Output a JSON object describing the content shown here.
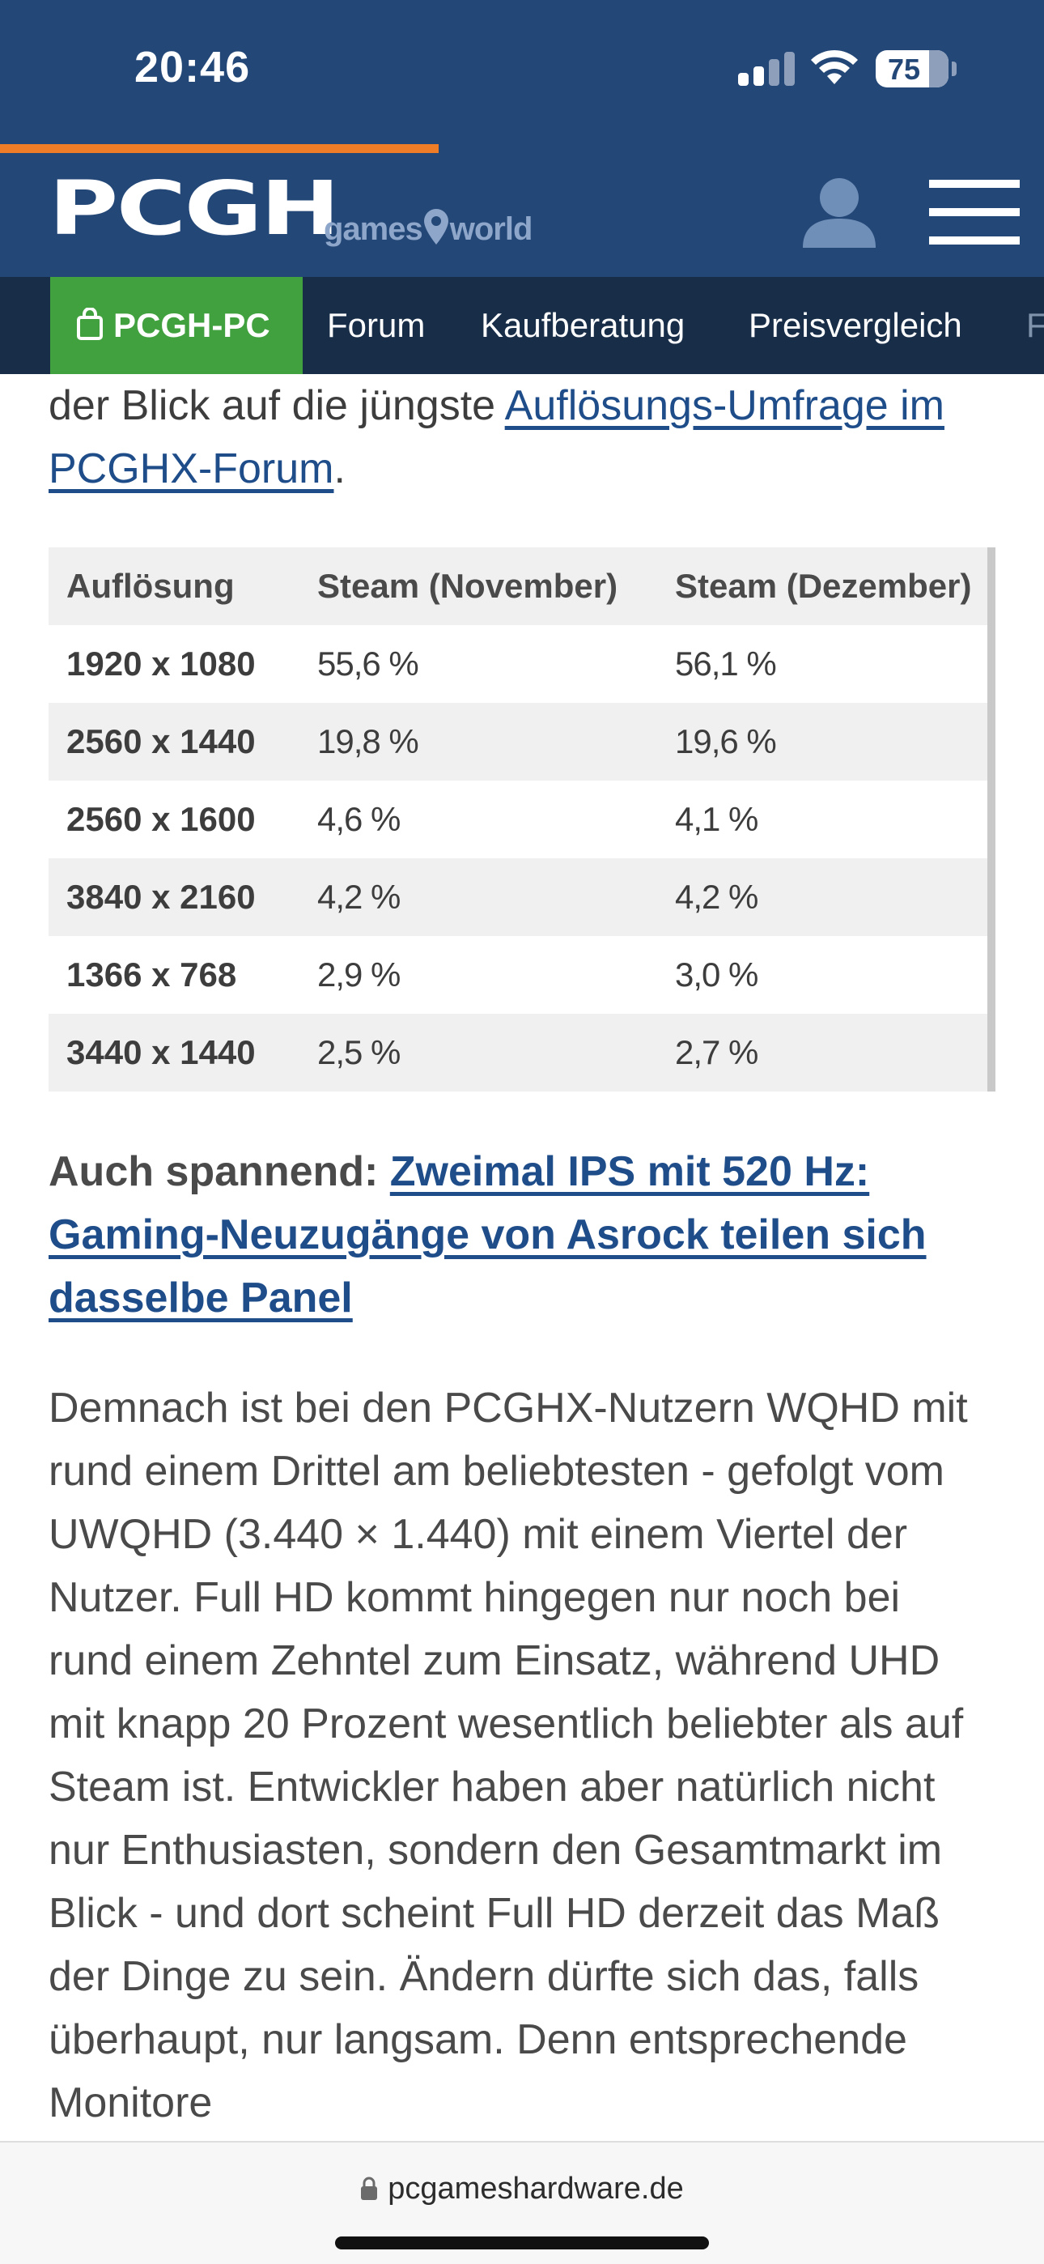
{
  "status": {
    "time": "20:46",
    "battery": "75"
  },
  "header": {
    "logo": "PCGH",
    "sublogo_left": "games",
    "sublogo_right": "world"
  },
  "nav": {
    "items": [
      "PCGH-PC",
      "Forum",
      "Kaufberatung",
      "Preisvergleich",
      "F"
    ]
  },
  "article": {
    "intro_text": "der Blick auf die jüngste ",
    "intro_link": "Auflösungs-Umfrage im PCGHX-Forum",
    "intro_end": ".",
    "table": {
      "headers": [
        "Auflösung",
        "Steam (November)",
        "Steam (Dezember)"
      ],
      "rows": [
        [
          "1920 x 1080",
          "55,6 %",
          "56,1 %"
        ],
        [
          "2560 x 1440",
          "19,8 %",
          "19,6 %"
        ],
        [
          "2560 x 1600",
          "4,6 %",
          "4,1 %"
        ],
        [
          "3840 x 2160",
          "4,2 %",
          "4,2 %"
        ],
        [
          "1366 x 768",
          "2,9 %",
          "3,0 %"
        ],
        [
          "3440 x 1440",
          "2,5 %",
          "2,7 %"
        ]
      ]
    },
    "teaser_label": "Auch spannend:",
    "teaser_link": "Zweimal IPS mit 520 Hz: Gaming-Neuzugänge von Asrock teilen sich dasselbe Panel",
    "body": "Demnach ist bei den PCGHX-Nutzern WQHD mit rund einem Drittel am beliebtesten - gefolgt vom UWQHD (3.440 × 1.440) mit einem Viertel der Nutzer. Full HD kommt hingegen nur noch bei rund einem Zehntel zum Einsatz, während UHD mit knapp 20 Prozent wesentlich beliebter als auf Steam ist. Entwickler haben aber natürlich nicht nur Enthusiasten, sondern den Gesamtmarkt im Blick - und dort scheint Full HD derzeit das Maß der Dinge zu sein. Ändern dürfte sich das, falls überhaupt, nur langsam. Denn entsprechende Monitore"
  },
  "browser": {
    "url": "pcgameshardware.de"
  },
  "colors": {
    "header_bg": "#234777",
    "nav_bg": "#182d48",
    "accent_orange": "#ef7d27",
    "nav_active": "#41a13f",
    "link": "#1e4d8a"
  }
}
